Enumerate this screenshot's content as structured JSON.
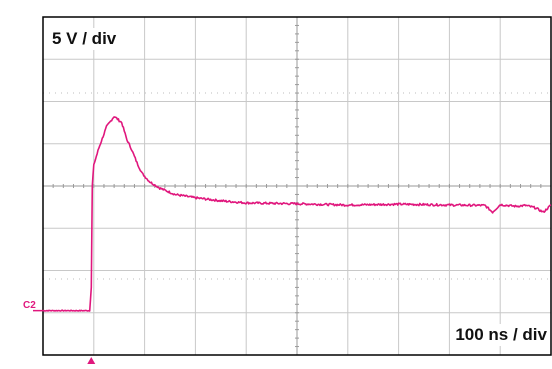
{
  "scope": {
    "vertical_scale": "5 V / div",
    "time_scale": "100 ns / div",
    "channel_label": "C2",
    "trace_color": "#e0177d",
    "grid_color": "#c8c8c8",
    "frame_color": "#000000"
  },
  "chart_data": {
    "type": "line",
    "title": "",
    "xlabel": "",
    "ylabel": "",
    "grid": true,
    "x_unit": "div",
    "y_unit": "div",
    "xlim": [
      0,
      10
    ],
    "ylim": [
      -4,
      4
    ],
    "series": [
      {
        "x": [
          0,
          0.92,
          0.95,
          0.97,
          1.0,
          1.1,
          1.25,
          1.4,
          1.55,
          1.65,
          1.75,
          1.85,
          1.95,
          2.1,
          2.3,
          2.6,
          3.0,
          3.5,
          4.0,
          5.0,
          6.0,
          7.0,
          8.0,
          8.7,
          8.85,
          9.0,
          9.3,
          9.5,
          9.7,
          9.85,
          10.0
        ],
        "y": [
          -2.95,
          -2.95,
          -2.4,
          0,
          0.5,
          0.9,
          1.4,
          1.65,
          1.5,
          1.1,
          0.85,
          0.55,
          0.3,
          0.1,
          -0.05,
          -0.2,
          -0.28,
          -0.35,
          -0.4,
          -0.42,
          -0.45,
          -0.43,
          -0.45,
          -0.46,
          -0.62,
          -0.44,
          -0.48,
          -0.46,
          -0.52,
          -0.62,
          -0.45
        ]
      }
    ]
  }
}
